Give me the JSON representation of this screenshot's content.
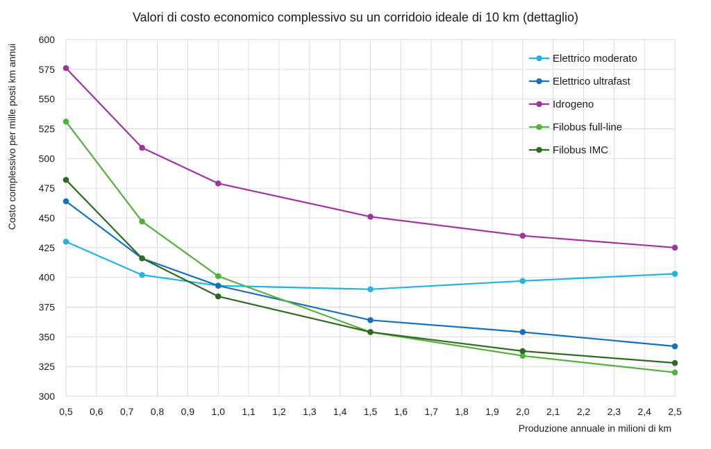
{
  "chart_data": {
    "type": "line",
    "title": "Valori di costo economico complessivo su un corridoio ideale di 10 km (dettaglio)",
    "xlabel": "Produzione annuale in milioni di km",
    "ylabel": "Costo complessivo per mille posti km annui",
    "xlim": [
      0.5,
      2.5
    ],
    "ylim": [
      300,
      600
    ],
    "x_ticks": [
      "0,5",
      "0,6",
      "0,7",
      "0,8",
      "0,9",
      "1,0",
      "1,1",
      "1,2",
      "1,3",
      "1,4",
      "1,5",
      "1,6",
      "1,7",
      "1,8",
      "1,9",
      "2,0",
      "2,1",
      "2,2",
      "2,3",
      "2,4",
      "2,5"
    ],
    "y_ticks": [
      "300",
      "325",
      "350",
      "375",
      "400",
      "425",
      "450",
      "475",
      "500",
      "525",
      "550",
      "575",
      "600"
    ],
    "grid": true,
    "legend_position": "top-right",
    "x": [
      0.5,
      0.75,
      1.0,
      1.5,
      2.0,
      2.5
    ],
    "series": [
      {
        "name": "Elettrico moderato",
        "color": "#1fb4e6",
        "values": [
          430,
          402,
          393,
          390,
          397,
          403
        ]
      },
      {
        "name": "Elettrico ultrafast",
        "color": "#1570be",
        "values": [
          464,
          416,
          393,
          364,
          354,
          342
        ]
      },
      {
        "name": "Idrogeno",
        "color": "#a2339e",
        "values": [
          576,
          509,
          479,
          451,
          435,
          425
        ]
      },
      {
        "name": "Filobus full-line",
        "color": "#53b03a",
        "values": [
          531,
          447,
          401,
          354,
          334,
          320
        ]
      },
      {
        "name": "Filobus IMC",
        "color": "#2d6a22",
        "values": [
          482,
          416,
          384,
          354,
          338,
          328
        ]
      }
    ]
  }
}
